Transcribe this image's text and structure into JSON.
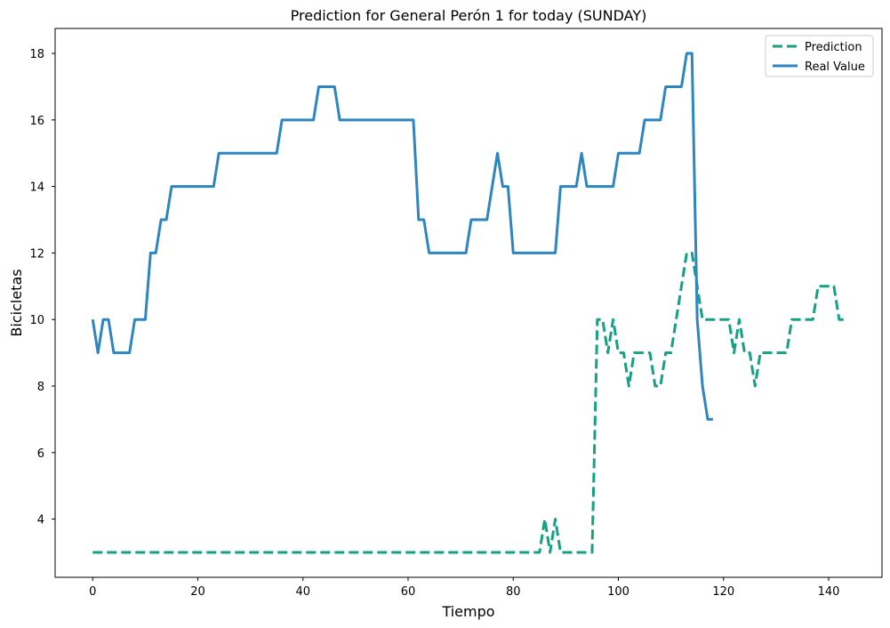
{
  "chart_data": {
    "type": "line",
    "title": "Prediction for General Perón 1 for today (SUNDAY)",
    "xlabel": "Tiempo",
    "ylabel": "Bicicletas",
    "xlim": [
      -7.15,
      150.15
    ],
    "ylim": [
      2.25,
      18.75
    ],
    "xticks": [
      0,
      20,
      40,
      60,
      80,
      100,
      120,
      140
    ],
    "yticks": [
      4,
      6,
      8,
      10,
      12,
      14,
      16,
      18
    ],
    "grid": false,
    "legend_position": "top-right",
    "series": [
      {
        "name": "Prediction",
        "color": "#16a085",
        "style": "dashed",
        "values": [
          3,
          3,
          3,
          3,
          3,
          3,
          3,
          3,
          3,
          3,
          3,
          3,
          3,
          3,
          3,
          3,
          3,
          3,
          3,
          3,
          3,
          3,
          3,
          3,
          3,
          3,
          3,
          3,
          3,
          3,
          3,
          3,
          3,
          3,
          3,
          3,
          3,
          3,
          3,
          3,
          3,
          3,
          3,
          3,
          3,
          3,
          3,
          3,
          3,
          3,
          3,
          3,
          3,
          3,
          3,
          3,
          3,
          3,
          3,
          3,
          3,
          3,
          3,
          3,
          3,
          3,
          3,
          3,
          3,
          3,
          3,
          3,
          3,
          3,
          3,
          3,
          3,
          3,
          3,
          3,
          3,
          3,
          3,
          3,
          3,
          3,
          4,
          3,
          4,
          3,
          3,
          3,
          3,
          3,
          3,
          3,
          10,
          10,
          9,
          10,
          9,
          9,
          8,
          9,
          9,
          9,
          9,
          8,
          8,
          9,
          9,
          10,
          11,
          12,
          12,
          11,
          10,
          10,
          10,
          10,
          10,
          10,
          9,
          10,
          9,
          9,
          8,
          9,
          9,
          9,
          9,
          9,
          9,
          10,
          10,
          10,
          10,
          10,
          11,
          11,
          11,
          11,
          10,
          10
        ]
      },
      {
        "name": "Real Value",
        "color": "#2e86c1",
        "style": "solid",
        "values": [
          10,
          9,
          10,
          10,
          9,
          9,
          9,
          9,
          10,
          10,
          10,
          12,
          12,
          13,
          13,
          14,
          14,
          14,
          14,
          14,
          14,
          14,
          14,
          14,
          15,
          15,
          15,
          15,
          15,
          15,
          15,
          15,
          15,
          15,
          15,
          15,
          16,
          16,
          16,
          16,
          16,
          16,
          16,
          17,
          17,
          17,
          17,
          16,
          16,
          16,
          16,
          16,
          16,
          16,
          16,
          16,
          16,
          16,
          16,
          16,
          16,
          16,
          13,
          13,
          12,
          12,
          12,
          12,
          12,
          12,
          12,
          12,
          13,
          13,
          13,
          13,
          14,
          15,
          14,
          14,
          12,
          12,
          12,
          12,
          12,
          12,
          12,
          12,
          12,
          14,
          14,
          14,
          14,
          15,
          14,
          14,
          14,
          14,
          14,
          14,
          15,
          15,
          15,
          15,
          15,
          16,
          16,
          16,
          16,
          17,
          17,
          17,
          17,
          18,
          18,
          10,
          8,
          7,
          7
        ]
      }
    ]
  }
}
